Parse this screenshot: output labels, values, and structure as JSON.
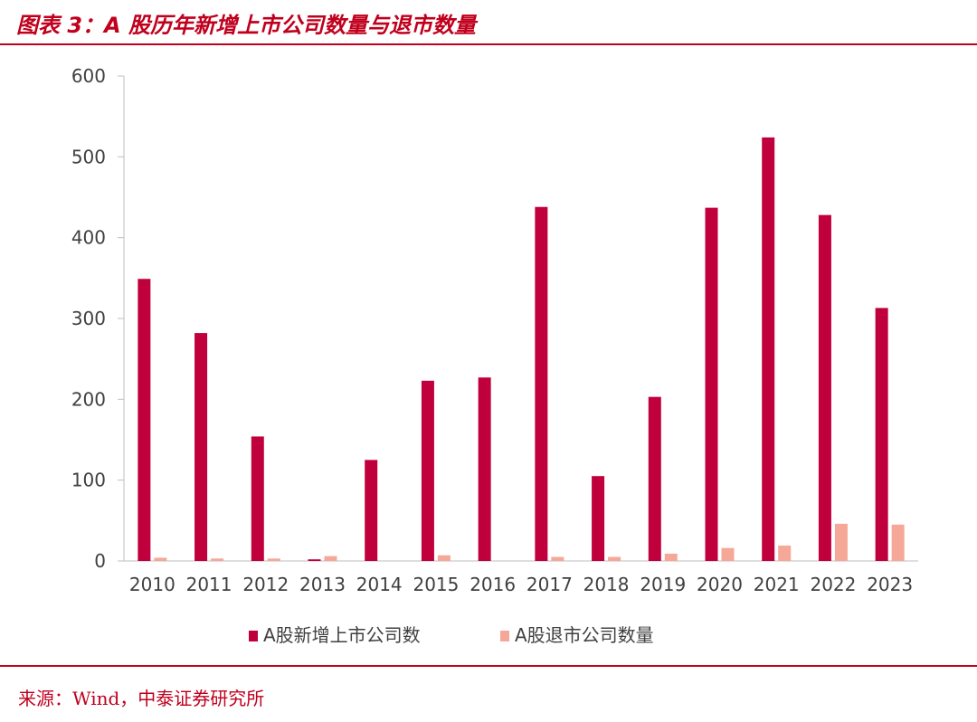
{
  "header": {
    "title": "图表 3：A 股历年新增上市公司数量与退市数量"
  },
  "footer": {
    "source": "来源：Wind，中泰证券研究所"
  },
  "colors": {
    "accent": "#c0001d",
    "new_listings": "#c0003c",
    "delistings": "#f5a898"
  },
  "chart_data": {
    "type": "bar",
    "title": "",
    "xlabel": "",
    "ylabel": "",
    "ylim": [
      0,
      600
    ],
    "yticks": [
      0,
      100,
      200,
      300,
      400,
      500,
      600
    ],
    "categories": [
      "2010",
      "2011",
      "2012",
      "2013",
      "2014",
      "2015",
      "2016",
      "2017",
      "2018",
      "2019",
      "2020",
      "2021",
      "2022",
      "2023"
    ],
    "series": [
      {
        "name": "A股新增上市公司数",
        "values": [
          349,
          282,
          154,
          2,
          125,
          223,
          227,
          438,
          105,
          203,
          437,
          524,
          428,
          313
        ]
      },
      {
        "name": "A股退市公司数量",
        "values": [
          4,
          3,
          3,
          6,
          0,
          7,
          0,
          5,
          5,
          9,
          16,
          19,
          46,
          45
        ]
      }
    ],
    "legend": "bottom",
    "grid": false
  }
}
